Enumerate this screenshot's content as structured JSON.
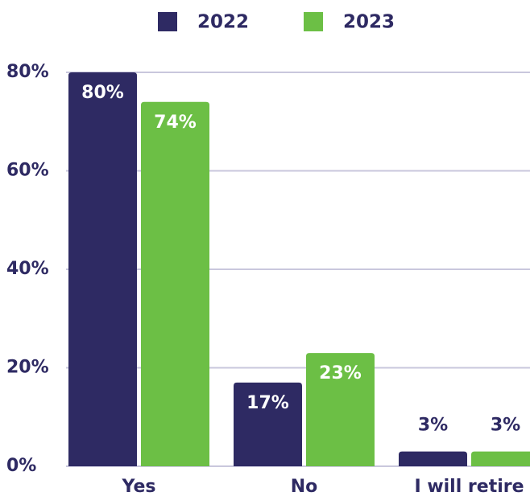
{
  "chart_data": {
    "type": "bar",
    "categories": [
      "Yes",
      "No",
      "I will retire"
    ],
    "series": [
      {
        "name": "2022",
        "color": "#2e2a63",
        "values": [
          80,
          17,
          3
        ],
        "value_labels": [
          "80%",
          "17%",
          "3%"
        ]
      },
      {
        "name": "2023",
        "color": "#6cbf45",
        "values": [
          74,
          23,
          3
        ],
        "value_labels": [
          "74%",
          "23%",
          "3%"
        ]
      }
    ],
    "ylim": [
      0,
      80
    ],
    "yticks": [
      {
        "value": 0,
        "label": "0%"
      },
      {
        "value": 20,
        "label": "20%"
      },
      {
        "value": 40,
        "label": "40%"
      },
      {
        "value": 60,
        "label": "60%"
      },
      {
        "value": 80,
        "label": "80%"
      }
    ],
    "grid": true,
    "legend": "top"
  }
}
